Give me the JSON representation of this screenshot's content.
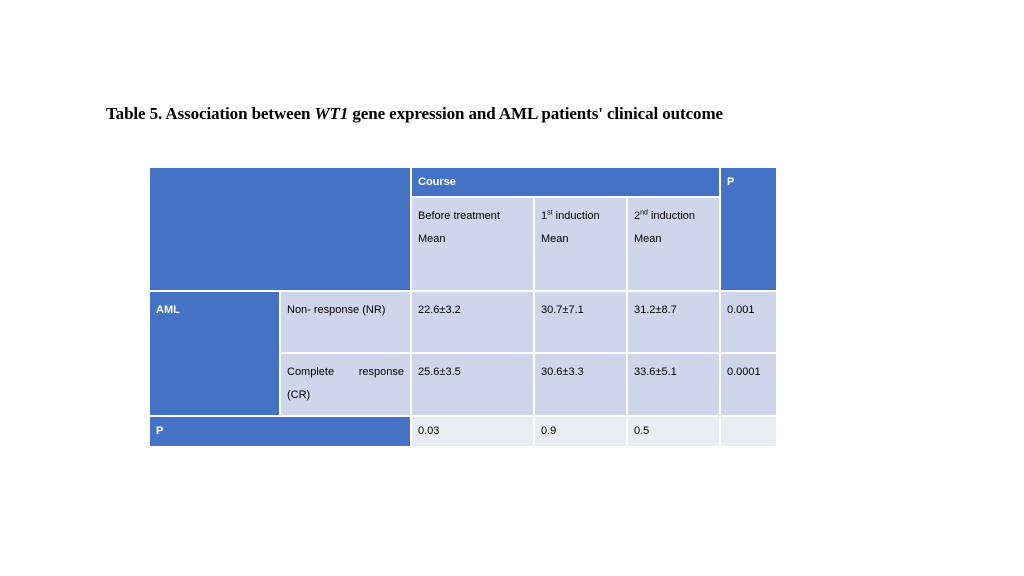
{
  "title": {
    "prefix": "Table 5. Association between ",
    "gene": "WT1",
    "suffix": " gene expression and AML patients' clinical outcome"
  },
  "table": {
    "header_course": "Course",
    "header_p": "P",
    "col_before": "Before treatment",
    "col_first_num": "1",
    "col_first_sup": "st",
    "col_first_rest": " induction",
    "col_second_num": "2",
    "col_second_sup": "nd",
    "col_second_rest": " induction",
    "mean_label": "Mean",
    "group": "AML",
    "rows": [
      {
        "label": "Non- response (NR)",
        "before": "22.6±3.2",
        "first": "30.7±7.1",
        "second": "31.2±8.7",
        "p": "0.001"
      },
      {
        "label_a": "Complete",
        "label_b": "response",
        "label_c": "(CR)",
        "before": "25.6±3.5",
        "first": "30.6±3.3",
        "second": "33.6±5.1",
        "p": "0.0001"
      }
    ],
    "p_row": {
      "label": "P",
      "before": "0.03",
      "first": "0.9",
      "second": "0.5",
      "p": ""
    }
  },
  "colors": {
    "header_blue": "#4472c4",
    "cell_dark": "#cfd5ea",
    "cell_light": "#e9ebf5"
  }
}
